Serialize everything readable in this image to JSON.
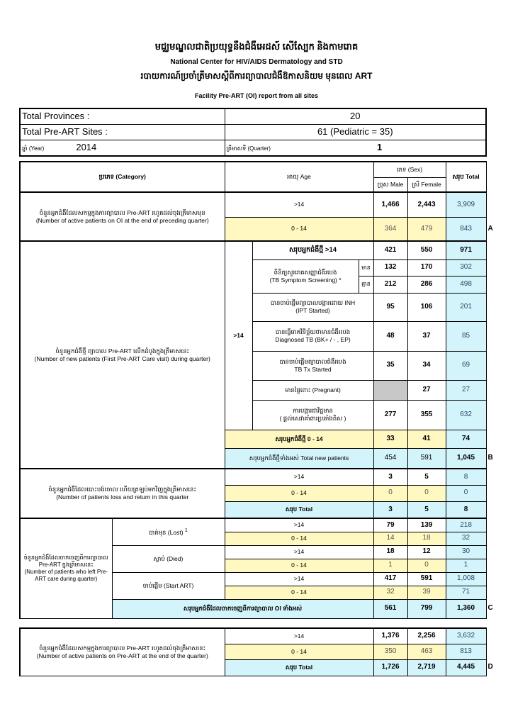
{
  "header": {
    "title_km": "មជ្ឈមណ្ឌលជាតិប្រយុទ្ធនឹងជំងឺអេដស៍ សើស្បែក និងកាមរោគ",
    "org_en": "National Center for HIV/AIDS Dermatology and STD",
    "subtitle_km": "របាយការណ៍ប្រចាំត្រីមាសស្តីពីការព្យាបាលជំងឺឱកាសនិយម មុនពេល ART",
    "report_title": "Facility Pre-ART (OI) report from all sites"
  },
  "info": {
    "provinces_label": "Total Provinces :",
    "provinces_value": "20",
    "sites_label": "Total Pre-ART Sites :",
    "sites_value": "61 (Pediatric = 35)",
    "year_label": "ឆ្នាំ (Year)",
    "year_value": "2014",
    "quarter_label": "ត្រីមាសទី (Quarter)",
    "quarter_value": "1"
  },
  "columns": {
    "category": "ប្រភេទ (Category)",
    "age": "អាយុ Age",
    "sex": "ភេទ (Sex)",
    "male": "ប្រុស Male",
    "female": "ស្រី Female",
    "total": "សរុប Total"
  },
  "A": {
    "label_km": "ចំនួនអ្នកជំងឺដែលសកម្មក្នុងការព្យាបាល Pre-ART រហូតដល់ចុងត្រីមាសមុន",
    "label_en": "(Number of active patients on OI at the end of preceding quarter)",
    "marker": "A",
    "rows": [
      {
        "age": ">14",
        "male": "1,466",
        "female": "2,443",
        "total": "3,909"
      },
      {
        "age": "0 - 14",
        "male": "364",
        "female": "479",
        "total": "843"
      }
    ]
  },
  "B": {
    "label_km": "ចំនួនអ្នកជំងឺថ្មី ព្យាបាល Pre-ART លើកដំបូងក្នុងត្រីមាសនេះ",
    "label_en": "(Number of new patients (First Pre-ART Care visit) during quarter)",
    "age_group": ">14",
    "marker": "B",
    "total_adult": {
      "label": "សរុបអ្នកជំងឺថ្មី >14",
      "male": "421",
      "female": "550",
      "total": "971"
    },
    "tb_screening": {
      "label_km": "ពិនិត្យសួររោគសញ្ញាជំងឺរបេង",
      "label_en": "(TB Symptom Screening) *",
      "positive": {
        "label": "មាន",
        "male": "132",
        "female": "170",
        "total": "302"
      },
      "negative": {
        "label": "គ្មាន",
        "male": "212",
        "female": "286",
        "total": "498"
      }
    },
    "ipt": {
      "label_km": "បានចាប់ផ្តើមព្យាបាលបង្ការដោយ INH",
      "label_en": "(IPT Started)",
      "male": "95",
      "female": "106",
      "total": "201"
    },
    "diagnosed": {
      "label_km": "បានធ្វើរោគវិនិច្ឆ័យថាមានជំងឺរបេង",
      "label_en": "Diagnosed TB (BK+ / - , EP)",
      "male": "48",
      "female": "37",
      "total": "85"
    },
    "tb_tx": {
      "label_km": "បានចាប់ផ្តើមព្យាបាលជំងឺរបេង",
      "label_en": "TB Tx Started",
      "male": "35",
      "female": "34",
      "total": "69"
    },
    "pregnant": {
      "label": "មានផ្ទៃពោះ (Pregnant)",
      "female": "27",
      "total": "27"
    },
    "pmtct": {
      "label_km": "ការបង្ការជាវិជ្ជមាន",
      "label_km2": "( ផ្តល់សេវាគាំពារប្រឆាំងពិស )",
      "male": "277",
      "female": "355",
      "total": "632"
    },
    "total_child": {
      "label": "សរុបអ្នកជំងឺថ្មី 0 - 14",
      "male": "33",
      "female": "41",
      "total": "74"
    },
    "total_new": {
      "label": "សរុបអ្នកជំងឺថ្មីទាំងអស់ Total new patients",
      "male": "454",
      "female": "591",
      "total": "1,045"
    }
  },
  "L": {
    "label_km": "ចំនួនអ្នកជំងឺដែលបោះបង់ចោល ហើយត្រឡប់មកវិញក្នុងត្រីមាសនេះ",
    "label_en": "(Number of patients loss and return in this quarter",
    "rows": [
      {
        "age": ">14",
        "male": "3",
        "female": "5",
        "total": "8"
      },
      {
        "age": "0 - 14",
        "male": "0",
        "female": "0",
        "total": "0"
      },
      {
        "age": "សរុប Total",
        "male": "3",
        "female": "5",
        "total": "8"
      }
    ]
  },
  "C": {
    "label_km": "ចំនួនអ្នកជំងឺដែលចាកចេញពីការព្យាបាល Pre-ART ក្នុងត្រីមាសនេះ",
    "label_en": "(Number of patients who left Pre-ART care during quarter)",
    "marker": "C",
    "lost": {
      "label": "បាត់មុខ (Lost)",
      "sup": "1",
      "rows": [
        {
          "age": ">14",
          "male": "79",
          "female": "139",
          "total": "218"
        },
        {
          "age": "0 - 14",
          "male": "14",
          "female": "18",
          "total": "32"
        }
      ]
    },
    "died": {
      "label": "ស្លាប់ (Died)",
      "rows": [
        {
          "age": ">14",
          "male": "18",
          "female": "12",
          "total": "30"
        },
        {
          "age": "0 - 14",
          "male": "1",
          "female": "0",
          "total": "1"
        }
      ]
    },
    "start_art": {
      "label": "ចាប់ផ្តើម (Start ART)",
      "rows": [
        {
          "age": ">14",
          "male": "417",
          "female": "591",
          "total": "1,008"
        },
        {
          "age": "0 - 14",
          "male": "32",
          "female": "39",
          "total": "71"
        }
      ]
    },
    "total": {
      "label": "សរុបអ្នកជំងឺដែលចាកចេញពីការព្យាបាល OI ទាំងអស់",
      "male": "561",
      "female": "799",
      "total": "1,360"
    }
  },
  "D": {
    "label_km": "ចំនួនអ្នកជំងឺដែលសកម្មក្នុងការព្យាបាល Pre-ART រហូតដល់ចុងត្រីមាសនេះ",
    "label_en": "(Number of active patients on Pre-ART at the end of the quarter)",
    "marker": "D",
    "rows": [
      {
        "age": ">14",
        "male": "1,376",
        "female": "2,256",
        "total": "3,632"
      },
      {
        "age": "0 - 14",
        "male": "350",
        "female": "463",
        "total": "813"
      },
      {
        "age": "សរុប Total",
        "male": "1,726",
        "female": "2,719",
        "total": "4,445"
      }
    ]
  },
  "colors": {
    "yellow_row": "#fff8c0",
    "blue_total": "#d3f4fb",
    "grey_na": "#c8c8c8"
  }
}
